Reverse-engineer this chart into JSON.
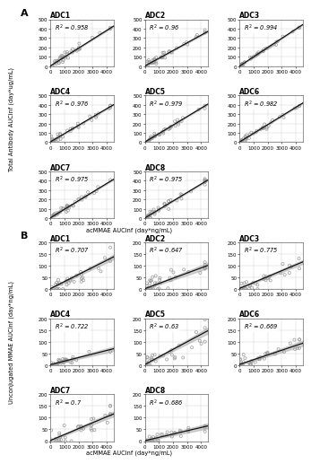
{
  "panel_A": {
    "label": "A",
    "subplots": [
      {
        "title": "ADC1",
        "r2": "0.958",
        "slope": 0.094,
        "intercept": 4,
        "x_max": 4500,
        "y_max": 500,
        "x_ticks": [
          0,
          1000,
          2000,
          3000,
          4000
        ],
        "y_ticks": [
          0,
          100,
          200,
          300,
          400,
          500
        ]
      },
      {
        "title": "ADC2",
        "r2": "0.96",
        "slope": 0.082,
        "intercept": 3,
        "x_max": 4500,
        "y_max": 500,
        "x_ticks": [
          0,
          1000,
          2000,
          3000,
          4000
        ],
        "y_ticks": [
          0,
          100,
          200,
          300,
          400,
          500
        ]
      },
      {
        "title": "ADC3",
        "r2": "0.994",
        "slope": 0.098,
        "intercept": 2,
        "x_max": 4500,
        "y_max": 500,
        "x_ticks": [
          0,
          1000,
          2000,
          3000,
          4000
        ],
        "y_ticks": [
          0,
          100,
          200,
          300,
          400,
          500
        ]
      },
      {
        "title": "ADC4",
        "r2": "0.976",
        "slope": 0.088,
        "intercept": 4,
        "x_max": 4500,
        "y_max": 500,
        "x_ticks": [
          0,
          1000,
          2000,
          3000,
          4000
        ],
        "y_ticks": [
          0,
          100,
          200,
          300,
          400,
          500
        ]
      },
      {
        "title": "ADC5",
        "r2": "0.979",
        "slope": 0.09,
        "intercept": 3,
        "x_max": 4500,
        "y_max": 500,
        "x_ticks": [
          0,
          1000,
          2000,
          3000,
          4000
        ],
        "y_ticks": [
          0,
          100,
          200,
          300,
          400,
          500
        ]
      },
      {
        "title": "ADC6",
        "r2": "0.982",
        "slope": 0.092,
        "intercept": 3,
        "x_max": 4500,
        "y_max": 500,
        "x_ticks": [
          0,
          1000,
          2000,
          3000,
          4000
        ],
        "y_ticks": [
          0,
          100,
          200,
          300,
          400,
          500
        ]
      },
      {
        "title": "ADC7",
        "r2": "0.975",
        "slope": 0.091,
        "intercept": 5,
        "x_max": 4500,
        "y_max": 500,
        "x_ticks": [
          0,
          1000,
          2000,
          3000,
          4000
        ],
        "y_ticks": [
          0,
          100,
          200,
          300,
          400,
          500
        ]
      },
      {
        "title": "ADC8",
        "r2": "0.975",
        "slope": 0.09,
        "intercept": 4,
        "x_max": 4500,
        "y_max": 500,
        "x_ticks": [
          0,
          1000,
          2000,
          3000,
          4000
        ],
        "y_ticks": [
          0,
          100,
          200,
          300,
          400,
          500
        ]
      }
    ],
    "ylabel": "Total Antibody AUCinf (day*ug/mL)",
    "xlabel": "acMMAE AUCinf (day*ng/mL)"
  },
  "panel_B": {
    "label": "B",
    "subplots": [
      {
        "title": "ADC1",
        "r2": "0.707",
        "slope": 0.03,
        "intercept": 2,
        "x_max": 4500,
        "y_max": 200,
        "x_ticks": [
          0,
          1000,
          2000,
          3000,
          4000
        ],
        "y_ticks": [
          0,
          50,
          100,
          150,
          200
        ]
      },
      {
        "title": "ADC2",
        "r2": "0.647",
        "slope": 0.022,
        "intercept": 2,
        "x_max": 4500,
        "y_max": 200,
        "x_ticks": [
          0,
          1000,
          2000,
          3000,
          4000
        ],
        "y_ticks": [
          0,
          50,
          100,
          150,
          200
        ]
      },
      {
        "title": "ADC3",
        "r2": "0.775",
        "slope": 0.025,
        "intercept": 3,
        "x_max": 4500,
        "y_max": 200,
        "x_ticks": [
          0,
          1000,
          2000,
          3000,
          4000
        ],
        "y_ticks": [
          0,
          50,
          100,
          150,
          200
        ]
      },
      {
        "title": "ADC4",
        "r2": "0.722",
        "slope": 0.015,
        "intercept": 2,
        "x_max": 4500,
        "y_max": 200,
        "x_ticks": [
          0,
          1000,
          2000,
          3000,
          4000
        ],
        "y_ticks": [
          0,
          50,
          100,
          150,
          200
        ]
      },
      {
        "title": "ADC5",
        "r2": "0.63",
        "slope": 0.032,
        "intercept": 3,
        "x_max": 4500,
        "y_max": 200,
        "x_ticks": [
          0,
          1000,
          2000,
          3000,
          4000
        ],
        "y_ticks": [
          0,
          50,
          100,
          150,
          200
        ]
      },
      {
        "title": "ADC6",
        "r2": "0.669",
        "slope": 0.02,
        "intercept": 3,
        "x_max": 4500,
        "y_max": 200,
        "x_ticks": [
          0,
          1000,
          2000,
          3000,
          4000
        ],
        "y_ticks": [
          0,
          50,
          100,
          150,
          200
        ]
      },
      {
        "title": "ADC7",
        "r2": "0.7",
        "slope": 0.025,
        "intercept": 3,
        "x_max": 4500,
        "y_max": 200,
        "x_ticks": [
          0,
          1000,
          2000,
          3000,
          4000
        ],
        "y_ticks": [
          0,
          50,
          100,
          150,
          200
        ]
      },
      {
        "title": "ADC8",
        "r2": "0.686",
        "slope": 0.014,
        "intercept": 2,
        "x_max": 4500,
        "y_max": 200,
        "x_ticks": [
          0,
          1000,
          2000,
          3000,
          4000
        ],
        "y_ticks": [
          0,
          50,
          100,
          150,
          200
        ]
      }
    ],
    "ylabel": "Unconjugated MMAE AUCinf (day*ng/mL)",
    "xlabel": "acMMAE AUCinf (day*ng/mL)"
  },
  "scatter_color": "#999999",
  "line_color": "#111111",
  "ci_color": "#aaaaaa",
  "background_color": "#ffffff",
  "grid_color": "#cccccc",
  "n_points_A": 40,
  "n_points_B": 35
}
